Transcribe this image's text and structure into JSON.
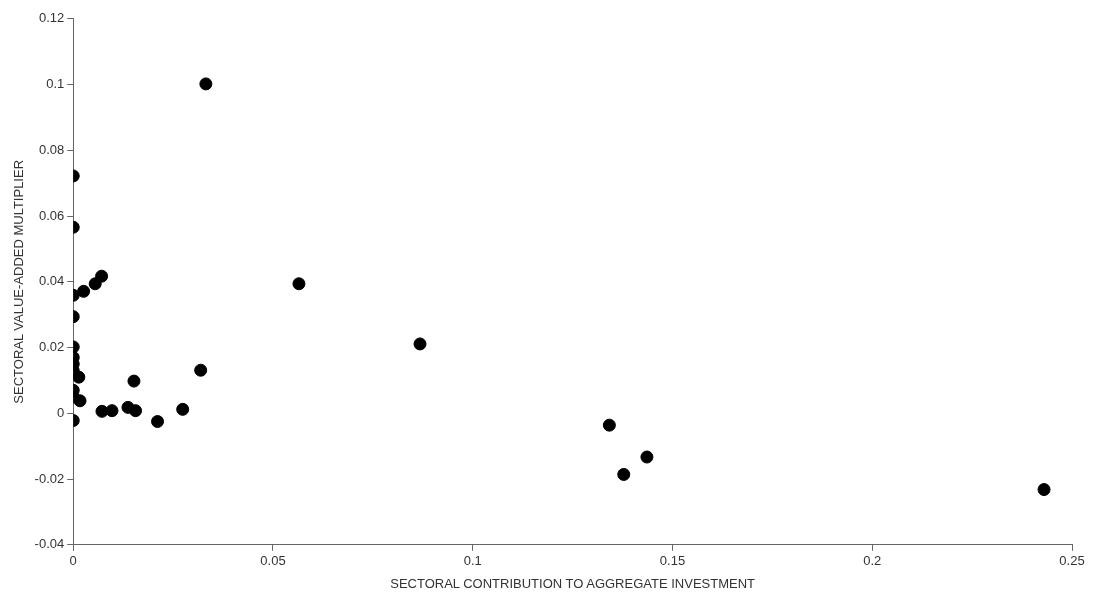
{
  "chart_data": {
    "type": "scatter",
    "xlabel": "SECTORAL CONTRIBUTION TO AGGREGATE INVESTMENT",
    "ylabel": "SECTORAL VALUE-ADDED MULTIPLIER",
    "x": [
      0.0332,
      0,
      0,
      0,
      0.0026,
      0.0055,
      0,
      0.0071,
      0,
      0,
      0,
      0,
      0,
      0,
      0,
      0.0014,
      0.0017,
      0.0072,
      0.0097,
      0.0137,
      0.0156,
      0.0152,
      0.0211,
      0.0274,
      0.0319,
      0.0565,
      0.0868,
      0.1342,
      0.1378,
      0.1436,
      0.243
    ],
    "series": [
      {
        "color": "#000000",
        "values": [
          0.1002,
          0.0722,
          0.0566,
          0.0359,
          0.0371,
          0.0394,
          0.0294,
          0.0417,
          0.0202,
          0.017,
          0.015,
          0.013,
          0.007,
          0.005,
          -0.0022,
          0.011,
          0.0038,
          0.0006,
          0.0008,
          0.0018,
          0.0008,
          0.0098,
          -0.0025,
          0.0012,
          0.0131,
          0.0394,
          0.0211,
          -0.0036,
          -0.0186,
          -0.0133,
          -0.0232
        ]
      }
    ],
    "xlim": [
      0,
      0.25
    ],
    "xticks": [
      0,
      0.05,
      0.1,
      0.15,
      0.2,
      0.25
    ],
    "ylim": [
      -0.04,
      0.12
    ],
    "yticks": [
      -0.04,
      -0.02,
      0,
      0.02,
      0.04,
      0.06,
      0.08,
      0.1,
      0.12
    ],
    "grid": false,
    "legend": false,
    "marker": "circle"
  }
}
